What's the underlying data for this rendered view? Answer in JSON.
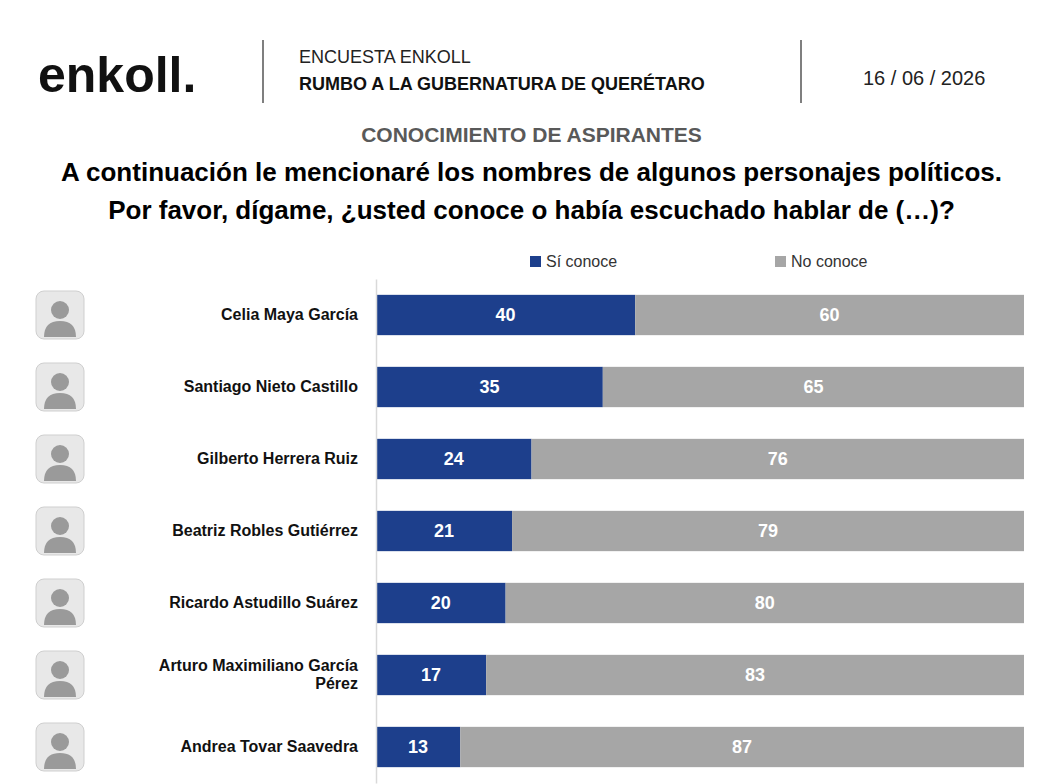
{
  "header": {
    "logo": "enkoll.",
    "kicker": "ENCUESTA ENKOLL",
    "heading": "RUMBO A LA GUBERNATURA DE QUERÉTARO",
    "date": "16 / 06 / 2026"
  },
  "chart_data": {
    "type": "bar",
    "orientation": "horizontal",
    "stacked": true,
    "data_labels": true,
    "tick_labels": "y",
    "legend": "top",
    "subtitle": "CONOCIMIENTO DE ASPIRANTES",
    "title": "A continuación le mencionaré los nombres de algunos personajes políticos. Por favor, dígame, ¿usted conoce o había escuchado hablar de (…)?",
    "categories": [
      "Celia Maya García",
      "Santiago Nieto Castillo",
      "Gilberto Herrera Ruiz",
      "Beatriz Robles Gutiérrez",
      "Ricardo Astudillo Suárez",
      "Arturo Maximiliano García Pérez",
      "Andrea Tovar Saavedra"
    ],
    "xlim": [
      0,
      100
    ],
    "series": [
      {
        "name": "Sí conoce",
        "color": "#1d3f8c",
        "values": [
          40,
          35,
          24,
          21,
          20,
          17,
          13
        ]
      },
      {
        "name": "No conoce",
        "color": "#a6a6a6",
        "values": [
          60,
          65,
          76,
          79,
          80,
          83,
          87
        ]
      }
    ]
  }
}
